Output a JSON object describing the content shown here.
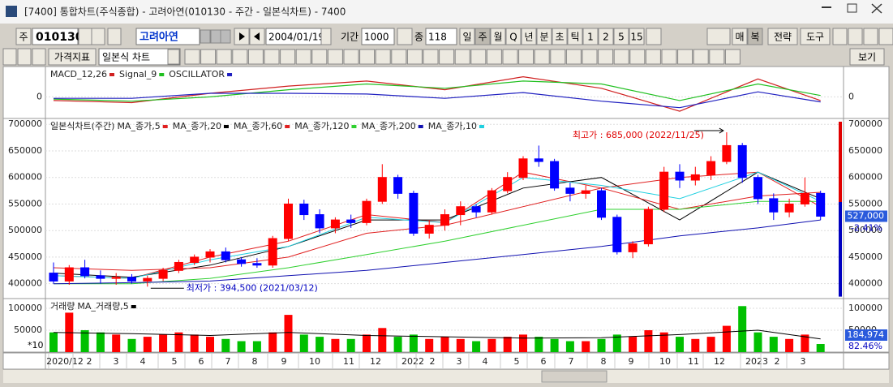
{
  "window": {
    "title": "[7400] 통합차트(주식종합) - 고려아연(010130 - 주간 - 일본식차트) - 7400"
  },
  "toolbar": {
    "period_unit": "주",
    "code": "010130",
    "name": "고려아연",
    "date": "2004/01/19",
    "range_label": "기간",
    "range": "1000",
    "count_label": "종",
    "count": "118",
    "intervals": [
      "일",
      "주",
      "월",
      "Q",
      "년",
      "분",
      "초",
      "틱",
      "1",
      "2",
      "5",
      "15"
    ],
    "right_buttons": [
      "매",
      "복",
      "전략",
      "도구"
    ],
    "indicator": "가격지표",
    "chart_style": "일본식 차트",
    "view": "보기"
  },
  "chart_data": [
    {
      "type": "line",
      "series": [
        {
          "name": "MACD_12,26",
          "color": "#d02020",
          "values": [
            -5000,
            -8000,
            5000,
            15000,
            22000,
            10000,
            28000,
            12000,
            -20000,
            25000,
            -5000
          ]
        },
        {
          "name": "Signal_9",
          "color": "#20c020",
          "values": [
            -3000,
            -6000,
            0,
            10000,
            18000,
            12000,
            22000,
            18000,
            -5000,
            18000,
            2000
          ]
        },
        {
          "name": "OSCILLATOR",
          "color": "#2020c0",
          "values": [
            -2000,
            -2000,
            5000,
            5000,
            4000,
            -2000,
            6000,
            -6000,
            -15000,
            7000,
            -7000
          ]
        }
      ],
      "x": [
        0,
        5,
        10,
        15,
        20,
        25,
        30,
        35,
        40,
        45,
        49
      ],
      "ylim": [
        -30000,
        40000
      ],
      "yticks": [
        0
      ]
    },
    {
      "type": "candlestick",
      "title": "일본식차트(주간)",
      "up_color": "#ff0000",
      "down_color": "#0000ff",
      "open": [
        420000,
        405000,
        430000,
        415000,
        410000,
        412000,
        405000,
        410000,
        425000,
        440000,
        450000,
        460000,
        445000,
        438000,
        435000,
        485000,
        550000,
        530000,
        505000,
        520000,
        515000,
        555000,
        600000,
        570000,
        495000,
        510000,
        530000,
        545000,
        535000,
        575000,
        600000,
        635000,
        630000,
        580000,
        570000,
        575000,
        525000,
        460000,
        475000,
        540000,
        610000,
        595000,
        605000,
        630000,
        660000,
        600000,
        560000,
        535000,
        550000,
        570000
      ],
      "high": [
        440000,
        435000,
        445000,
        425000,
        420000,
        418000,
        415000,
        430000,
        445000,
        455000,
        465000,
        468000,
        450000,
        448000,
        490000,
        560000,
        558000,
        540000,
        525000,
        530000,
        560000,
        625000,
        605000,
        575000,
        520000,
        540000,
        555000,
        550000,
        580000,
        610000,
        640000,
        660000,
        635000,
        590000,
        585000,
        580000,
        530000,
        480000,
        545000,
        620000,
        625000,
        620000,
        640000,
        685000,
        665000,
        605000,
        570000,
        560000,
        600000,
        575000
      ],
      "low": [
        400000,
        398000,
        410000,
        400000,
        398000,
        400000,
        394500,
        405000,
        420000,
        435000,
        440000,
        440000,
        432000,
        430000,
        430000,
        480000,
        520000,
        495000,
        495000,
        505000,
        510000,
        550000,
        560000,
        490000,
        485000,
        500000,
        510000,
        525000,
        530000,
        570000,
        595000,
        620000,
        575000,
        555000,
        560000,
        520000,
        455000,
        448000,
        470000,
        535000,
        580000,
        585000,
        595000,
        625000,
        590000,
        550000,
        520000,
        525000,
        545000,
        520000
      ],
      "close": [
        405000,
        430000,
        415000,
        410000,
        412000,
        405000,
        410000,
        425000,
        440000,
        450000,
        460000,
        445000,
        438000,
        435000,
        485000,
        550000,
        530000,
        505000,
        520000,
        515000,
        555000,
        600000,
        570000,
        495000,
        510000,
        530000,
        545000,
        535000,
        575000,
        600000,
        635000,
        630000,
        580000,
        570000,
        575000,
        525000,
        460000,
        475000,
        540000,
        610000,
        595000,
        605000,
        630000,
        660000,
        600000,
        560000,
        535000,
        550000,
        570000,
        527000
      ],
      "ma_x": [
        0,
        5,
        10,
        15,
        20,
        25,
        30,
        35,
        40,
        45,
        49
      ],
      "ma_series": [
        {
          "name": "MA_종가,5",
          "color": "#e02020",
          "values": [
            415000,
            410000,
            450000,
            480000,
            530000,
            515000,
            610000,
            580000,
            600000,
            610000,
            545000
          ]
        },
        {
          "name": "MA_종가,20",
          "color": "#000000",
          "values": [
            420000,
            412000,
            435000,
            470000,
            520000,
            520000,
            580000,
            600000,
            520000,
            610000,
            560000
          ]
        },
        {
          "name": "MA_종가,60",
          "color": "#e02020",
          "values": [
            430000,
            425000,
            430000,
            450000,
            495000,
            510000,
            545000,
            580000,
            540000,
            565000,
            572000
          ]
        },
        {
          "name": "MA_종가,120",
          "color": "#30d030",
          "values": [
            400000,
            400000,
            410000,
            430000,
            455000,
            480000,
            510000,
            540000,
            540000,
            555000,
            555000
          ]
        },
        {
          "name": "MA_종가,200",
          "color": "#1010b0",
          "values": [
            400000,
            402000,
            405000,
            415000,
            425000,
            440000,
            455000,
            470000,
            490000,
            505000,
            520000
          ]
        },
        {
          "name": "MA_종가,10",
          "color": "#20d0e0",
          "values": [
            415000,
            410000,
            445000,
            470000,
            525000,
            515000,
            600000,
            585000,
            560000,
            610000,
            555000
          ]
        }
      ],
      "ylim": [
        372000,
        708000
      ],
      "yticks": [
        400000,
        450000,
        500000,
        550000,
        600000,
        650000,
        700000
      ],
      "annotations": [
        "최고가 : 685,000 (2022/11/25)",
        "최저가 : 394,500 (2021/03/12)"
      ],
      "last_label": "527,000",
      "change_label": "-2.41%",
      "x_labels": [
        "2020/12",
        "2",
        "3",
        "4",
        "5",
        "6",
        "7",
        "8",
        "9",
        "10",
        "11",
        "12",
        "2022",
        "2",
        "3",
        "4",
        "5",
        "6",
        "7",
        "8",
        "9",
        "10",
        "11",
        "12",
        "2023",
        "2",
        "3"
      ]
    },
    {
      "type": "bar",
      "title": "거래량",
      "up_color": "#ff0000",
      "down_color": "#00c000",
      "values": [
        45000,
        90000,
        50000,
        45000,
        40000,
        30000,
        35000,
        40000,
        45000,
        40000,
        35000,
        30000,
        25000,
        25000,
        45000,
        85000,
        40000,
        35000,
        30000,
        30000,
        40000,
        55000,
        35000,
        40000,
        30000,
        35000,
        30000,
        25000,
        30000,
        35000,
        40000,
        35000,
        30000,
        25000,
        25000,
        30000,
        40000,
        35000,
        50000,
        45000,
        35000,
        30000,
        35000,
        60000,
        105000,
        45000,
        35000,
        30000,
        40000,
        18497
      ],
      "ma_name": "MA_거래량,5",
      "ma_color": "#000000",
      "ma_x": [
        0,
        5,
        10,
        15,
        20,
        25,
        30,
        35,
        40,
        45,
        49
      ],
      "ma_values": [
        45000,
        42000,
        38000,
        45000,
        38000,
        35000,
        32000,
        33000,
        40000,
        50000,
        30000
      ],
      "ylim": [
        0,
        118500
      ],
      "yticks": [
        50000,
        100000
      ],
      "scale_label": "*10",
      "last_label": "184,974",
      "ratio_label": "82.46%"
    }
  ]
}
